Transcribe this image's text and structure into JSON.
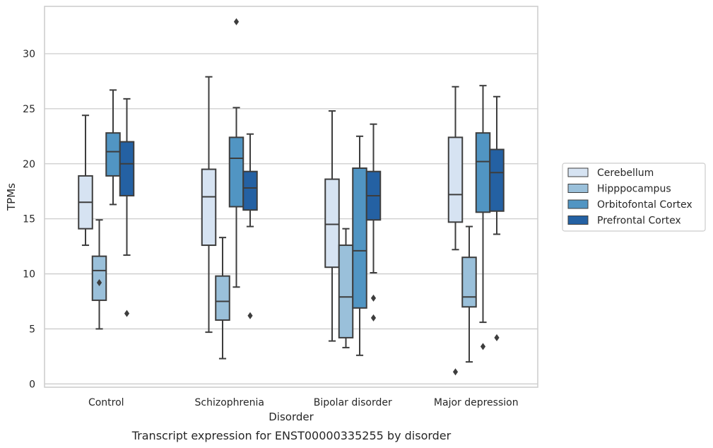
{
  "chart_data": {
    "type": "box",
    "title": "",
    "caption": "Transcript expression for ENST00000335255 by disorder",
    "xlabel": "Disorder",
    "ylabel": "TPMs",
    "ylim": [
      -0.3,
      34.3
    ],
    "yticks": [
      0,
      5,
      10,
      15,
      20,
      25,
      30
    ],
    "grid": "horizontal",
    "legend_position": "right",
    "categories": [
      "Control",
      "Schizophrenia",
      "Bipolar disorder",
      "Major depression"
    ],
    "series": [
      {
        "name": "Cerebellum",
        "color": "#d6e3f2",
        "boxes": [
          {
            "whislo": 12.6,
            "q1": 14.1,
            "med": 16.5,
            "q3": 18.9,
            "whishi": 24.4,
            "fliers": []
          },
          {
            "whislo": 4.7,
            "q1": 12.6,
            "med": 17.0,
            "q3": 19.5,
            "whishi": 27.9,
            "fliers": []
          },
          {
            "whislo": 3.9,
            "q1": 10.6,
            "med": 14.5,
            "q3": 18.6,
            "whishi": 24.8,
            "fliers": []
          },
          {
            "whislo": 12.2,
            "q1": 14.7,
            "med": 17.2,
            "q3": 22.4,
            "whishi": 27.0,
            "fliers": [
              1.1
            ]
          }
        ]
      },
      {
        "name": "Hipppocampus",
        "color": "#9ac0da",
        "boxes": [
          {
            "whislo": 5.0,
            "q1": 7.6,
            "med": 10.3,
            "q3": 11.6,
            "whishi": 14.9,
            "fliers": [
              9.2
            ]
          },
          {
            "whislo": 2.3,
            "q1": 5.8,
            "med": 7.5,
            "q3": 9.8,
            "whishi": 13.3,
            "fliers": []
          },
          {
            "whislo": 3.3,
            "q1": 4.2,
            "med": 7.9,
            "q3": 12.6,
            "whishi": 14.1,
            "fliers": []
          },
          {
            "whislo": 2.0,
            "q1": 7.0,
            "med": 7.9,
            "q3": 11.5,
            "whishi": 14.3,
            "fliers": []
          }
        ]
      },
      {
        "name": "Orbitofontal Cortex",
        "color": "#5195c3",
        "boxes": [
          {
            "whislo": 16.3,
            "q1": 18.9,
            "med": 21.1,
            "q3": 22.8,
            "whishi": 26.7,
            "fliers": []
          },
          {
            "whislo": 8.8,
            "q1": 16.1,
            "med": 20.5,
            "q3": 22.4,
            "whishi": 25.1,
            "fliers": [
              32.9
            ]
          },
          {
            "whislo": 2.6,
            "q1": 6.9,
            "med": 12.1,
            "q3": 19.6,
            "whishi": 22.5,
            "fliers": []
          },
          {
            "whislo": 5.6,
            "q1": 15.6,
            "med": 20.2,
            "q3": 22.8,
            "whishi": 27.1,
            "fliers": [
              3.4
            ]
          }
        ]
      },
      {
        "name": "Prefrontal Cortex",
        "color": "#2461a3",
        "boxes": [
          {
            "whislo": 11.7,
            "q1": 17.1,
            "med": 20.0,
            "q3": 22.0,
            "whishi": 25.9,
            "fliers": [
              6.4
            ]
          },
          {
            "whislo": 14.3,
            "q1": 15.8,
            "med": 17.8,
            "q3": 19.3,
            "whishi": 22.7,
            "fliers": [
              6.2
            ]
          },
          {
            "whislo": 10.1,
            "q1": 14.9,
            "med": 17.1,
            "q3": 19.3,
            "whishi": 23.6,
            "fliers": [
              7.8,
              6.0
            ]
          },
          {
            "whislo": 13.6,
            "q1": 15.7,
            "med": 19.2,
            "q3": 21.3,
            "whishi": 26.1,
            "fliers": [
              4.2
            ]
          }
        ]
      }
    ]
  }
}
